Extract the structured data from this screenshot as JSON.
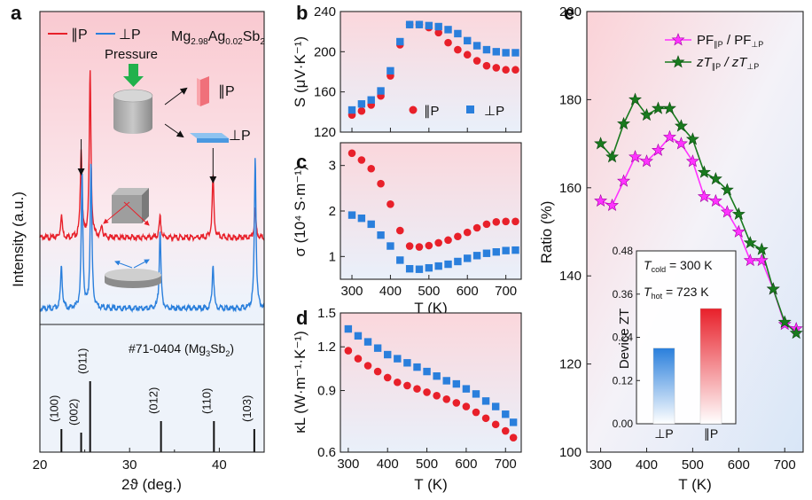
{
  "colors": {
    "red": "#e8202a",
    "blue": "#2a7fdc",
    "magenta": "#ff33ff",
    "green": "#197a1e",
    "a_top_bg": "#fbd9de",
    "a_bot_bg": "#e5eef9"
  },
  "chart_data": [
    {
      "id": "a",
      "panel": "a",
      "type": "line",
      "title": "Mg2.98Ag0.02Sb2",
      "title_parts": {
        "pre": "Mg",
        "s1": "2.98",
        "mid": "Ag",
        "s2": "0.02",
        "post": "Sb",
        "s3": "2"
      },
      "xlabel": "2ϑ (deg.)",
      "ylabel": "Intensity (a.u.)",
      "xlim": [
        20,
        45
      ],
      "xticks": [
        "20",
        "30",
        "40"
      ],
      "legend": {
        "par": "∥P",
        "perp": "⊥P"
      },
      "schematic": {
        "pressure": "Pressure",
        "par": "∥P",
        "perp": "⊥P"
      },
      "series": [
        {
          "name": "∥P",
          "color": "red",
          "baseline": 0.72,
          "peaks": [
            [
              22.4,
              0.1
            ],
            [
              24.6,
              0.38
            ],
            [
              25.6,
              0.72
            ],
            [
              26.9,
              0.05
            ],
            [
              33.4,
              0.09
            ],
            [
              39.3,
              0.27
            ],
            [
              44.0,
              0.12
            ]
          ]
        },
        {
          "name": "⊥P",
          "color": "blue",
          "baseline": 0.42,
          "peaks": [
            [
              22.4,
              0.19
            ],
            [
              24.7,
              0.58
            ],
            [
              25.7,
              0.63
            ],
            [
              33.4,
              0.34
            ],
            [
              39.3,
              0.19
            ],
            [
              44.0,
              0.66
            ]
          ]
        }
      ],
      "arrows_at": [
        24.6,
        39.3
      ],
      "reference": {
        "label": "#71-0404 (Mg3Sb2)",
        "label_parts": {
          "pre": "#71-0404 (Mg",
          "sub": "3",
          "post": "Sb",
          "sub2": "2",
          "close": ")"
        },
        "peaks": [
          {
            "x": 22.4,
            "h": 0.26,
            "label": "(100)"
          },
          {
            "x": 24.6,
            "h": 0.22,
            "label": "(002)"
          },
          {
            "x": 25.6,
            "h": 0.8,
            "label": "(011)"
          },
          {
            "x": 33.5,
            "h": 0.35,
            "label": "(012)"
          },
          {
            "x": 39.4,
            "h": 0.35,
            "label": "(110)"
          },
          {
            "x": 43.9,
            "h": 0.26,
            "label": "(103)"
          }
        ]
      }
    },
    {
      "id": "b",
      "panel": "b",
      "type": "scatter",
      "ylabel": "S (μV·K⁻¹)",
      "xlim": [
        270,
        740
      ],
      "ylim": [
        120,
        240
      ],
      "yticks": [
        120,
        160,
        200,
        240
      ],
      "x": [
        300,
        325,
        350,
        375,
        400,
        425,
        450,
        475,
        500,
        525,
        550,
        575,
        600,
        625,
        650,
        675,
        700,
        725
      ],
      "series": [
        {
          "name": "∥P",
          "marker": "circle",
          "color": "red",
          "values": [
            137,
            141,
            147,
            156,
            176,
            207,
            227,
            227,
            224,
            219,
            209,
            202,
            197,
            191,
            186,
            184,
            182,
            182
          ]
        },
        {
          "name": "⊥P",
          "marker": "square",
          "color": "blue",
          "values": [
            142,
            148,
            152,
            161,
            181,
            210,
            227,
            227,
            226,
            225,
            222,
            218,
            211,
            206,
            202,
            200,
            199,
            199
          ]
        }
      ],
      "legend": {
        "par": "∥P",
        "perp": "⊥P"
      }
    },
    {
      "id": "c",
      "panel": "c",
      "type": "scatter",
      "ylabel": "σ (10⁴ S·m⁻¹)",
      "xlabel": "T (K)",
      "xlim": [
        270,
        740
      ],
      "ylim": [
        0.5,
        3.5
      ],
      "yticks": [
        1,
        2,
        3
      ],
      "xticks": [
        300,
        400,
        500,
        600,
        700
      ],
      "x": [
        300,
        325,
        350,
        375,
        400,
        425,
        450,
        475,
        500,
        525,
        550,
        575,
        600,
        625,
        650,
        675,
        700,
        725
      ],
      "series": [
        {
          "name": "∥P",
          "marker": "circle",
          "color": "red",
          "values": [
            3.27,
            3.12,
            2.93,
            2.6,
            2.15,
            1.57,
            1.23,
            1.21,
            1.24,
            1.3,
            1.36,
            1.44,
            1.53,
            1.63,
            1.71,
            1.76,
            1.77,
            1.77
          ]
        },
        {
          "name": "⊥P",
          "marker": "square",
          "color": "blue",
          "values": [
            1.91,
            1.84,
            1.71,
            1.47,
            1.23,
            0.92,
            0.73,
            0.72,
            0.75,
            0.79,
            0.83,
            0.89,
            0.96,
            1.02,
            1.07,
            1.1,
            1.13,
            1.14
          ]
        }
      ]
    },
    {
      "id": "d",
      "panel": "d",
      "type": "scatter",
      "ylabel": "κL (W·m⁻¹·K⁻¹)",
      "xlabel": "T (K)",
      "yscale": "log",
      "xlim": [
        280,
        740
      ],
      "ylim": [
        0.6,
        1.5
      ],
      "yticks": [
        "0.6",
        "0.9",
        "1.2",
        "1.5"
      ],
      "ytick_values": [
        0.6,
        0.9,
        1.2,
        1.5
      ],
      "xticks": [
        300,
        400,
        500,
        600,
        700
      ],
      "x": [
        300,
        325,
        350,
        375,
        400,
        425,
        450,
        475,
        500,
        525,
        550,
        575,
        600,
        625,
        650,
        675,
        700,
        720
      ],
      "series": [
        {
          "name": "∥P",
          "marker": "circle",
          "color": "red",
          "values": [
            1.17,
            1.11,
            1.06,
            1.02,
            0.98,
            0.95,
            0.93,
            0.91,
            0.89,
            0.87,
            0.85,
            0.83,
            0.81,
            0.78,
            0.75,
            0.72,
            0.69,
            0.66
          ]
        },
        {
          "name": "⊥P",
          "marker": "square",
          "color": "blue",
          "values": [
            1.35,
            1.29,
            1.24,
            1.19,
            1.14,
            1.11,
            1.08,
            1.05,
            1.02,
            0.99,
            0.96,
            0.94,
            0.91,
            0.88,
            0.84,
            0.81,
            0.77,
            0.73
          ]
        }
      ]
    },
    {
      "id": "e",
      "panel": "e",
      "type": "line",
      "ylabel": "Ratio (%)",
      "xlabel": "T (K)",
      "xlim": [
        270,
        740
      ],
      "ylim": [
        100,
        200
      ],
      "yticks": [
        100,
        120,
        140,
        160,
        180,
        200
      ],
      "xticks": [
        300,
        400,
        500,
        600,
        700
      ],
      "x": [
        300,
        325,
        350,
        375,
        400,
        425,
        450,
        475,
        500,
        525,
        550,
        575,
        600,
        625,
        650,
        675,
        700,
        725
      ],
      "series": [
        {
          "name": "PF∥P / PF⊥P",
          "marker": "star",
          "color": "magenta",
          "values": [
            157,
            156,
            161.5,
            167,
            166,
            168.5,
            171.5,
            170,
            166,
            158,
            157,
            154.5,
            150,
            143.5,
            143.5,
            137,
            129,
            128
          ]
        },
        {
          "name": "zT∥P / zT⊥P",
          "marker": "star",
          "color": "green",
          "values": [
            170,
            167,
            174.5,
            180,
            176.5,
            178,
            178,
            174,
            171,
            163.5,
            162,
            159.5,
            154,
            147.5,
            146,
            137,
            129.5,
            127
          ]
        }
      ],
      "legend": {
        "pf": {
          "a": "PF",
          "b": "∥P",
          "c": " / PF",
          "d": "⊥P"
        },
        "zt": {
          "a": "zT",
          "b": "∥P",
          "c": " / zT",
          "d": "⊥P"
        }
      },
      "inset": {
        "type": "bar",
        "ylabel": "Device ZT",
        "ylim": [
          0,
          0.48
        ],
        "yticks": [
          "0.00",
          "0.12",
          "0.24",
          "0.36",
          "0.48"
        ],
        "categories": [
          "⊥P",
          "∥P"
        ],
        "values": [
          0.21,
          0.32
        ],
        "annotation": {
          "tcold": "T",
          "tcold_sub": "cold",
          "tcold_val": " = 300 K",
          "thot": "T",
          "thot_sub": "hot",
          "thot_val": " = 723 K"
        }
      }
    }
  ]
}
